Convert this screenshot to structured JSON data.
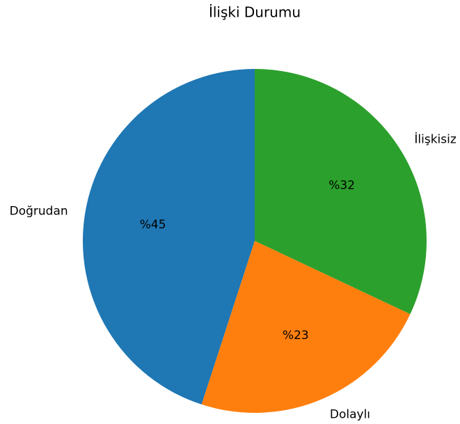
{
  "chart_data": {
    "type": "pie",
    "title": "İlişki Durumu",
    "categories": [
      "Doğrudan",
      "Dolaylı",
      "İlişkisiz"
    ],
    "values": [
      45,
      23,
      32
    ],
    "value_labels": [
      "%45",
      "%23",
      "%32"
    ],
    "colors": [
      "#1f77b4",
      "#ff7f0e",
      "#2ca02c"
    ]
  }
}
